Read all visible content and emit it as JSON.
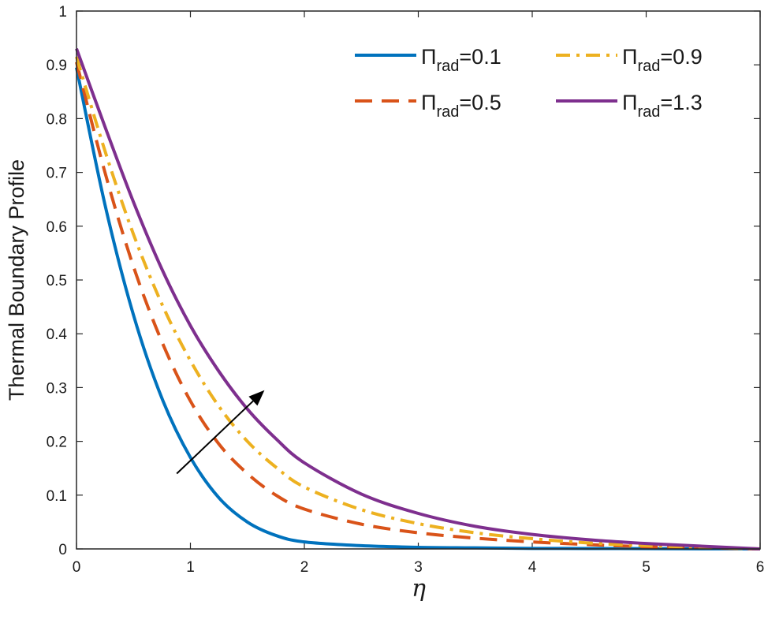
{
  "chart_data": {
    "type": "line",
    "title": "",
    "xlabel": "η",
    "ylabel": "Thermal Boundary Profile",
    "xlim": [
      0,
      6
    ],
    "ylim": [
      0,
      1
    ],
    "xticks": [
      "0",
      "1",
      "2",
      "3",
      "4",
      "5",
      "6"
    ],
    "yticks": [
      "0",
      "0.1",
      "0.2",
      "0.3",
      "0.4",
      "0.5",
      "0.6",
      "0.7",
      "0.8",
      "0.9",
      "1"
    ],
    "grid": false,
    "legend_position": "top-right",
    "x": [
      0,
      0.25,
      0.5,
      0.75,
      1,
      1.25,
      1.5,
      1.75,
      2,
      2.5,
      3,
      3.5,
      4,
      4.5,
      5,
      5.5,
      6
    ],
    "series": [
      {
        "name": "Π",
        "sub": "rad",
        "param": "=0.1",
        "color": "#0072BD",
        "style": "solid",
        "values": [
          0.895,
          0.64,
          0.435,
          0.28,
          0.17,
          0.095,
          0.05,
          0.025,
          0.013,
          0.006,
          0.003,
          0.002,
          0.001,
          0.0008,
          0.0005,
          0.0002,
          0
        ]
      },
      {
        "name": "Π",
        "sub": "rad",
        "param": "=0.5",
        "color": "#D95319",
        "style": "dashed",
        "values": [
          0.905,
          0.7,
          0.525,
          0.385,
          0.275,
          0.195,
          0.14,
          0.1,
          0.074,
          0.046,
          0.03,
          0.02,
          0.013,
          0.008,
          0.004,
          0.002,
          0
        ]
      },
      {
        "name": "Π",
        "sub": "rad",
        "param": "=0.9",
        "color": "#EDB120",
        "style": "dashdot",
        "values": [
          0.915,
          0.74,
          0.585,
          0.455,
          0.35,
          0.265,
          0.2,
          0.152,
          0.115,
          0.073,
          0.047,
          0.03,
          0.019,
          0.011,
          0.006,
          0.003,
          0
        ]
      },
      {
        "name": "Π",
        "sub": "rad",
        "param": "=1.3",
        "color": "#7E2F8E",
        "style": "solid",
        "values": [
          0.93,
          0.785,
          0.645,
          0.52,
          0.415,
          0.33,
          0.26,
          0.205,
          0.16,
          0.102,
          0.066,
          0.042,
          0.027,
          0.017,
          0.01,
          0.005,
          0
        ]
      }
    ],
    "annotation": {
      "type": "arrow",
      "from": [
        0.88,
        0.14
      ],
      "to": [
        1.65,
        0.295
      ]
    }
  }
}
